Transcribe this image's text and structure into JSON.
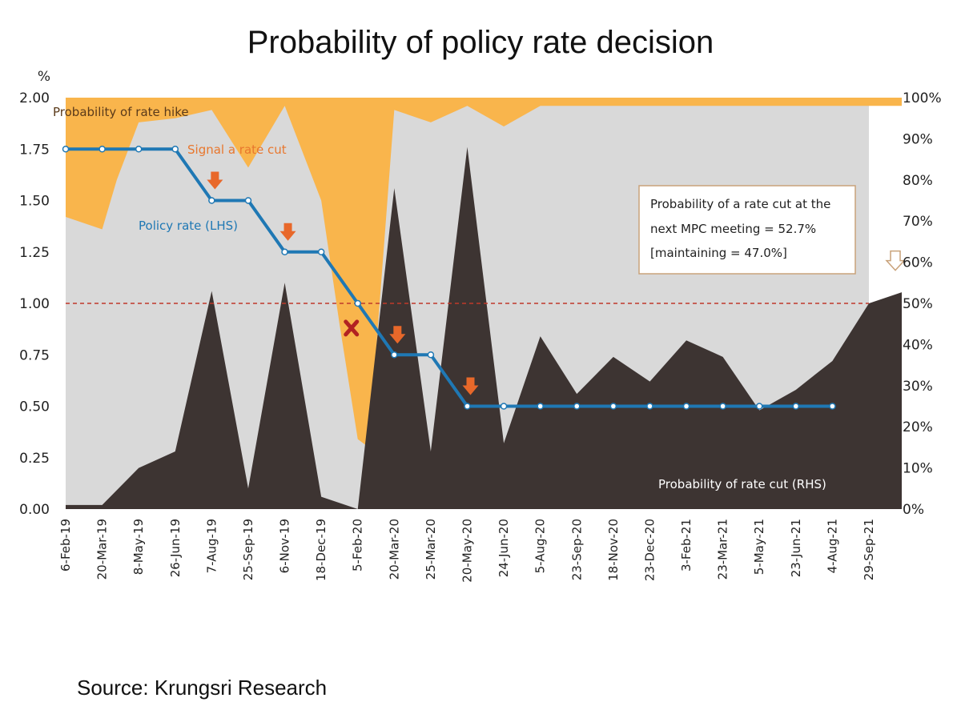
{
  "chart_data": {
    "type": "area",
    "title": "Probability of policy rate decision",
    "source": "Source: Krungsri Research",
    "y_left": {
      "unit_label": "%",
      "range": [
        0,
        2.0
      ],
      "ticks": [
        "0.00",
        "0.25",
        "0.50",
        "0.75",
        "1.00",
        "1.25",
        "1.50",
        "1.75",
        "2.00"
      ]
    },
    "y_right": {
      "range": [
        0,
        100
      ],
      "ticks": [
        "0%",
        "10%",
        "20%",
        "30%",
        "40%",
        "50%",
        "60%",
        "70%",
        "80%",
        "90%",
        "100%"
      ]
    },
    "x_categories": [
      "6-Feb-19",
      "20-Mar-19",
      "8-May-19",
      "26-Jun-19",
      "7-Aug-19",
      "25-Sep-19",
      "6-Nov-19",
      "18-Dec-19",
      "5-Feb-20",
      "20-Mar-20",
      "25-Mar-20",
      "20-May-20",
      "24-Jun-20",
      "5-Aug-20",
      "23-Sep-20",
      "18-Nov-20",
      "23-Dec-20",
      "3-Feb-21",
      "23-Mar-21",
      "5-May-21",
      "23-Jun-21",
      "4-Aug-21",
      "29-Sep-21"
    ],
    "reference_line": {
      "value": 1.0,
      "axis": "left",
      "color": "#c0392b"
    },
    "series": [
      {
        "name": "Probability of rate hike",
        "axis": "right",
        "color": "#f9b54c",
        "style": "area-from-top",
        "x": [
          0,
          1,
          1.4,
          2,
          3,
          4,
          4.5,
          5,
          6,
          7,
          7.5,
          8,
          8.3,
          9,
          10,
          11,
          12,
          13,
          22.9
        ],
        "values": [
          29,
          32,
          20,
          6,
          5,
          3,
          10,
          17,
          2,
          25,
          55,
          83,
          85,
          3,
          6,
          2,
          7,
          2,
          2
        ]
      },
      {
        "name": "Probability of rate cut (RHS)",
        "axis": "right",
        "color": "#3d3432",
        "style": "area-from-bottom",
        "x": [
          0,
          1,
          2,
          3,
          4,
          5,
          6,
          7,
          8,
          9,
          10,
          11,
          12,
          13,
          14,
          15,
          16,
          17,
          18,
          19,
          20,
          21,
          22,
          22.9
        ],
        "values": [
          1,
          1,
          10,
          14,
          53,
          5,
          55,
          3,
          0,
          78,
          14,
          88,
          16,
          42,
          28,
          37,
          31,
          41,
          37,
          24,
          29,
          36,
          50,
          52.7
        ]
      },
      {
        "name": "Policy rate (LHS)",
        "axis": "left",
        "color": "#1f78b4",
        "style": "line",
        "x": [
          0,
          1,
          2,
          3,
          4,
          5,
          6,
          7,
          8,
          9,
          10,
          11,
          12,
          13,
          14,
          15,
          16,
          17,
          18,
          19,
          20,
          21
        ],
        "values": [
          1.75,
          1.75,
          1.75,
          1.75,
          1.5,
          1.5,
          1.25,
          1.25,
          1.0,
          0.75,
          0.75,
          0.5,
          0.5,
          0.5,
          0.5,
          0.5,
          0.5,
          0.5,
          0.5,
          0.5,
          0.5,
          0.5
        ]
      }
    ],
    "series_labels": [
      {
        "text": "Probability of rate hike",
        "color": "#5a3a1a"
      },
      {
        "text": "Signal a rate cut",
        "color": "#e8772e"
      },
      {
        "text": "Policy rate (LHS)",
        "color": "#1f78b4"
      },
      {
        "text": "Probability of rate cut (RHS)",
        "color": "#ffffff"
      }
    ],
    "cut_markers": {
      "x": [
        4,
        6,
        9,
        11
      ],
      "color": "#e8682a"
    },
    "miss_marker": {
      "x": 8,
      "color": "#b22222"
    },
    "callout": {
      "lines": [
        "Probability of a rate cut at the",
        "next MPC meeting = 52.7%",
        "[maintaining = 47.0%]"
      ],
      "pointer_x": 22.9
    }
  }
}
